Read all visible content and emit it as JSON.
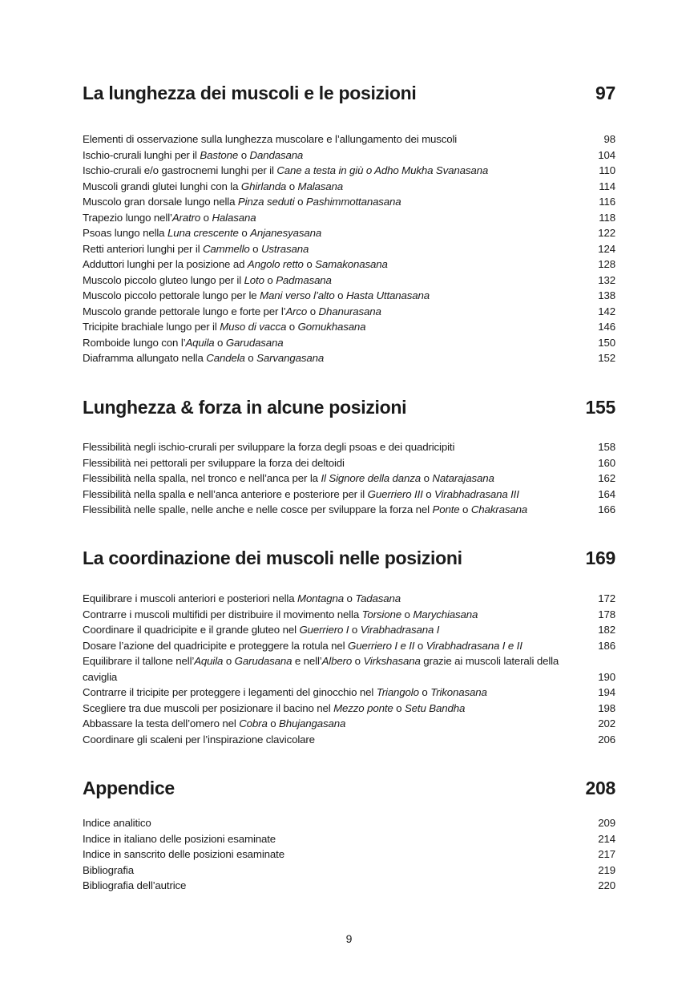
{
  "sections": [
    {
      "title": "La lunghezza dei muscoli e le posizioni",
      "page": "97",
      "entries": [
        {
          "parts": [
            {
              "t": "Elementi di osservazione sulla lunghezza muscolare e l’allungamento dei muscoli",
              "i": false
            }
          ],
          "page": "98"
        },
        {
          "parts": [
            {
              "t": "Ischio-crurali lunghi per il ",
              "i": false
            },
            {
              "t": "Bastone",
              "i": true
            },
            {
              "t": " o ",
              "i": false
            },
            {
              "t": "Dandasana",
              "i": true
            }
          ],
          "page": "104"
        },
        {
          "parts": [
            {
              "t": "Ischio-crurali e/o gastrocnemi lunghi per il ",
              "i": false
            },
            {
              "t": "Cane a testa in giù o Adho Mukha Svanasana",
              "i": true
            }
          ],
          "page": "110"
        },
        {
          "parts": [
            {
              "t": "Muscoli grandi glutei lunghi con la ",
              "i": false
            },
            {
              "t": "Ghirlanda",
              "i": true
            },
            {
              "t": " o ",
              "i": false
            },
            {
              "t": "Malasana",
              "i": true
            }
          ],
          "page": "114"
        },
        {
          "parts": [
            {
              "t": "Muscolo gran dorsale lungo nella ",
              "i": false
            },
            {
              "t": "Pinza seduti",
              "i": true
            },
            {
              "t": " o ",
              "i": false
            },
            {
              "t": "Pashimmottanasana",
              "i": true
            }
          ],
          "page": "116"
        },
        {
          "parts": [
            {
              "t": "Trapezio lungo nell’",
              "i": false
            },
            {
              "t": "Aratro",
              "i": true
            },
            {
              "t": " o ",
              "i": false
            },
            {
              "t": "Halasana",
              "i": true
            }
          ],
          "page": "118"
        },
        {
          "parts": [
            {
              "t": "Psoas lungo nella ",
              "i": false
            },
            {
              "t": "Luna crescente",
              "i": true
            },
            {
              "t": " o ",
              "i": false
            },
            {
              "t": "Anjanesyasana",
              "i": true
            }
          ],
          "page": "122"
        },
        {
          "parts": [
            {
              "t": "Retti anteriori lunghi per il ",
              "i": false
            },
            {
              "t": "Cammello",
              "i": true
            },
            {
              "t": " o ",
              "i": false
            },
            {
              "t": "Ustrasana",
              "i": true
            }
          ],
          "page": "124"
        },
        {
          "parts": [
            {
              "t": "Adduttori lunghi per la posizione ad ",
              "i": false
            },
            {
              "t": "Angolo retto",
              "i": true
            },
            {
              "t": " o ",
              "i": false
            },
            {
              "t": "Samakonasana",
              "i": true
            }
          ],
          "page": "128"
        },
        {
          "parts": [
            {
              "t": "Muscolo piccolo gluteo lungo per il ",
              "i": false
            },
            {
              "t": "Loto",
              "i": true
            },
            {
              "t": " o ",
              "i": false
            },
            {
              "t": "Padmasana",
              "i": true
            }
          ],
          "page": "132"
        },
        {
          "parts": [
            {
              "t": "Muscolo piccolo pettorale lungo per le ",
              "i": false
            },
            {
              "t": "Mani verso l’alto",
              "i": true
            },
            {
              "t": " o ",
              "i": false
            },
            {
              "t": "Hasta Uttanasana",
              "i": true
            }
          ],
          "page": "138"
        },
        {
          "parts": [
            {
              "t": "Muscolo grande pettorale lungo e forte per l’",
              "i": false
            },
            {
              "t": "Arco",
              "i": true
            },
            {
              "t": " o ",
              "i": false
            },
            {
              "t": "Dhanurasana",
              "i": true
            }
          ],
          "page": "142"
        },
        {
          "parts": [
            {
              "t": "Tricipite brachiale lungo per il ",
              "i": false
            },
            {
              "t": "Muso di vacca",
              "i": true
            },
            {
              "t": " o ",
              "i": false
            },
            {
              "t": "Gomukhasana",
              "i": true
            }
          ],
          "page": "146"
        },
        {
          "parts": [
            {
              "t": "Romboide lungo con l’",
              "i": false
            },
            {
              "t": "Aquila",
              "i": true
            },
            {
              "t": " o ",
              "i": false
            },
            {
              "t": "Garudasana",
              "i": true
            }
          ],
          "page": "150"
        },
        {
          "parts": [
            {
              "t": "Diaframma allungato nella ",
              "i": false
            },
            {
              "t": "Candela",
              "i": true
            },
            {
              "t": " o ",
              "i": false
            },
            {
              "t": "Sarvangasana",
              "i": true
            }
          ],
          "page": "152"
        }
      ]
    },
    {
      "title": "Lunghezza & forza in alcune posizioni",
      "page": "155",
      "entries": [
        {
          "parts": [
            {
              "t": "Flessibilità negli ischio-crurali per sviluppare la forza degli psoas e dei quadricipiti",
              "i": false
            }
          ],
          "page": "158"
        },
        {
          "parts": [
            {
              "t": "Flessibilità nei pettorali per sviluppare la forza dei deltoidi",
              "i": false
            }
          ],
          "page": "160"
        },
        {
          "parts": [
            {
              "t": "Flessibilità nella spalla, nel tronco e nell’anca per la ",
              "i": false
            },
            {
              "t": "Il Signore della danza",
              "i": true
            },
            {
              "t": " o ",
              "i": false
            },
            {
              "t": "Natarajasana",
              "i": true
            }
          ],
          "page": "162"
        },
        {
          "parts": [
            {
              "t": "Flessibilità nella spalla e nell’anca anteriore e posteriore per il ",
              "i": false
            },
            {
              "t": "Guerriero III",
              "i": true
            },
            {
              "t": " o ",
              "i": false
            },
            {
              "t": "Virabhadrasana III",
              "i": true
            }
          ],
          "page": "164"
        },
        {
          "parts": [
            {
              "t": "Flessibilità nelle spalle, nelle anche e nelle cosce per sviluppare la forza nel ",
              "i": false
            },
            {
              "t": "Ponte",
              "i": true
            },
            {
              "t": " o ",
              "i": false
            },
            {
              "t": "Chakrasana",
              "i": true
            }
          ],
          "page": "166"
        }
      ]
    },
    {
      "title": "La coordinazione dei muscoli nelle posizioni",
      "page": "169",
      "entries": [
        {
          "parts": [
            {
              "t": "Equilibrare i muscoli anteriori e posteriori nella ",
              "i": false
            },
            {
              "t": "Montagna",
              "i": true
            },
            {
              "t": " o ",
              "i": false
            },
            {
              "t": "Tadasana",
              "i": true
            }
          ],
          "page": "172"
        },
        {
          "parts": [
            {
              "t": "Contrarre i muscoli multifidi per distribuire il movimento nella ",
              "i": false
            },
            {
              "t": "Torsione",
              "i": true
            },
            {
              "t": " o ",
              "i": false
            },
            {
              "t": "Marychiasana",
              "i": true
            }
          ],
          "page": "178"
        },
        {
          "parts": [
            {
              "t": "Coordinare il quadricipite e il grande gluteo nel ",
              "i": false
            },
            {
              "t": "Guerriero I",
              "i": true
            },
            {
              "t": " o ",
              "i": false
            },
            {
              "t": "Virabhadrasana I",
              "i": true
            }
          ],
          "page": "182"
        },
        {
          "parts": [
            {
              "t": "Dosare l’azione del quadricipite e proteggere la rotula nel ",
              "i": false
            },
            {
              "t": "Guerriero I e II",
              "i": true
            },
            {
              "t": " o ",
              "i": false
            },
            {
              "t": "Virabhadrasana I e II",
              "i": true
            }
          ],
          "page": "186"
        },
        {
          "parts": [
            {
              "t": "Equilibrare il tallone nell’",
              "i": false
            },
            {
              "t": "Aquila",
              "i": true
            },
            {
              "t": " o ",
              "i": false
            },
            {
              "t": "Garudasana",
              "i": true
            },
            {
              "t": " e nell’",
              "i": false
            },
            {
              "t": "Albero",
              "i": true
            },
            {
              "t": " o ",
              "i": false
            },
            {
              "t": "Virkshasana",
              "i": true
            },
            {
              "t": " grazie ai muscoli laterali della caviglia",
              "i": false
            }
          ],
          "page": "190"
        },
        {
          "parts": [
            {
              "t": "Contrarre il tricipite per proteggere i legamenti del ginocchio nel ",
              "i": false
            },
            {
              "t": "Triangolo",
              "i": true
            },
            {
              "t": " o ",
              "i": false
            },
            {
              "t": "Trikonasana",
              "i": true
            }
          ],
          "page": "194"
        },
        {
          "parts": [
            {
              "t": "Scegliere tra due muscoli per posizionare il bacino nel ",
              "i": false
            },
            {
              "t": "Mezzo ponte",
              "i": true
            },
            {
              "t": " o ",
              "i": false
            },
            {
              "t": "Setu Bandha",
              "i": true
            }
          ],
          "page": "198"
        },
        {
          "parts": [
            {
              "t": "Abbassare la testa dell’omero nel ",
              "i": false
            },
            {
              "t": "Cobra",
              "i": true
            },
            {
              "t": " o ",
              "i": false
            },
            {
              "t": "Bhujangasana",
              "i": true
            }
          ],
          "page": "202"
        },
        {
          "parts": [
            {
              "t": "Coordinare gli scaleni per l’inspirazione clavicolare",
              "i": false
            }
          ],
          "page": "206"
        }
      ]
    },
    {
      "title": "Appendice",
      "page": "208",
      "entries": [
        {
          "parts": [
            {
              "t": "Indice analitico",
              "i": false
            }
          ],
          "page": "209"
        },
        {
          "parts": [
            {
              "t": "Indice in italiano delle posizioni esaminate",
              "i": false
            }
          ],
          "page": "214"
        },
        {
          "parts": [
            {
              "t": "Indice in sanscrito delle posizioni esaminate",
              "i": false
            }
          ],
          "page": "217"
        },
        {
          "parts": [
            {
              "t": "Bibliografia",
              "i": false
            }
          ],
          "page": "219"
        },
        {
          "parts": [
            {
              "t": "Bibliografia dell’autrice",
              "i": false
            }
          ],
          "page": "220"
        }
      ]
    }
  ],
  "folio": "9"
}
